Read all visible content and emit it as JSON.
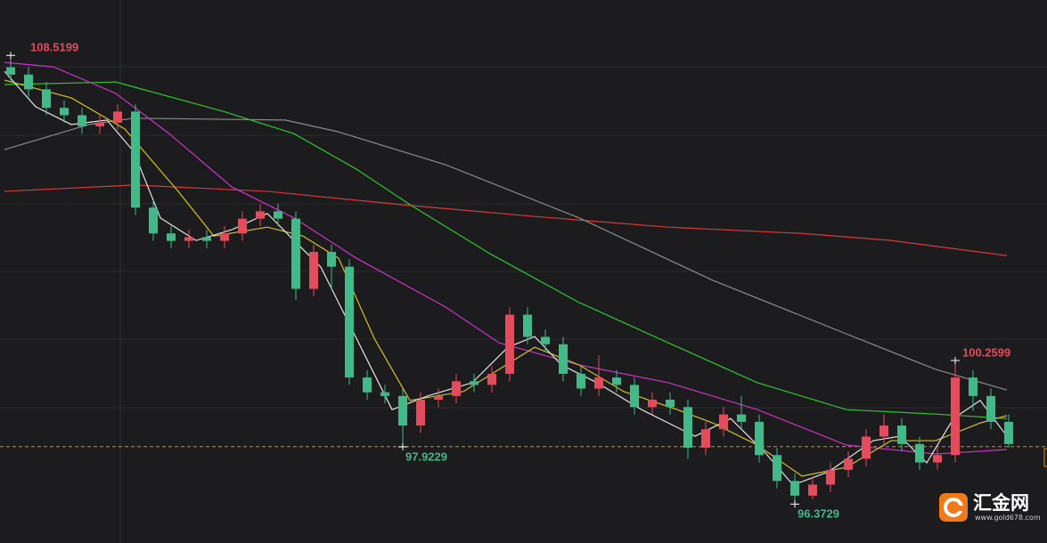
{
  "chart_data": {
    "type": "candlestick",
    "xlim": [
      -0.6,
      58.15
    ],
    "ylim": [
      95.32,
      110.02
    ],
    "grid_y": [
      108.21,
      106.36,
      104.5,
      102.67,
      100.84,
      98.98
    ],
    "grid_x": [
      6.15
    ],
    "up_color": "#e34c5c",
    "down_color": "#43b98a",
    "last_price": 97.93,
    "last_price_color": "#e08a1e",
    "candles": {
      "open": [
        108.2,
        108.0,
        107.6,
        107.1,
        106.9,
        106.6,
        106.7,
        107.0,
        104.4,
        103.7,
        103.5,
        103.6,
        103.5,
        103.7,
        104.1,
        104.3,
        104.1,
        102.2,
        103.2,
        102.8,
        99.8,
        99.4,
        99.3,
        98.5,
        99.2,
        99.3,
        99.7,
        99.6,
        99.9,
        101.5,
        100.9,
        100.7,
        99.9,
        99.5,
        99.8,
        99.6,
        99.0,
        99.2,
        99.0,
        97.9,
        98.4,
        98.8,
        98.6,
        97.7,
        97.0,
        96.6,
        96.9,
        97.3,
        97.6,
        98.2,
        98.5,
        98.0,
        97.5,
        97.7,
        99.8,
        99.3,
        98.6
      ],
      "high": [
        108.5199,
        108.2,
        107.8,
        107.3,
        107.1,
        106.9,
        107.2,
        107.2,
        104.6,
        103.9,
        103.8,
        103.8,
        103.9,
        104.3,
        104.5,
        104.5,
        104.3,
        103.4,
        103.4,
        103.0,
        100.0,
        99.6,
        99.5,
        99.4,
        99.5,
        99.9,
        99.9,
        100.1,
        101.7,
        101.7,
        101.1,
        100.9,
        100.1,
        100.4,
        100.0,
        99.8,
        99.4,
        99.4,
        99.2,
        98.6,
        99.0,
        99.3,
        98.8,
        97.9,
        97.2,
        97.1,
        97.5,
        97.8,
        98.4,
        98.8,
        98.7,
        98.2,
        97.9,
        100.2599,
        100.0,
        99.5,
        98.8
      ],
      "low": [
        107.8,
        107.4,
        106.9,
        106.7,
        106.4,
        106.4,
        106.5,
        104.2,
        103.5,
        103.3,
        103.3,
        103.3,
        103.3,
        103.5,
        103.9,
        103.9,
        101.9,
        102.0,
        102.2,
        99.6,
        99.2,
        99.1,
        97.9229,
        98.3,
        99.0,
        99.1,
        99.4,
        99.4,
        99.7,
        100.7,
        100.5,
        99.7,
        99.3,
        99.3,
        99.4,
        98.8,
        98.8,
        98.8,
        97.6,
        97.7,
        98.2,
        98.4,
        97.5,
        96.8,
        96.3729,
        96.5,
        96.7,
        97.1,
        97.4,
        98.0,
        97.8,
        97.3,
        97.3,
        97.5,
        98.9,
        98.4,
        97.9
      ],
      "close": [
        108.0,
        107.6,
        107.1,
        106.9,
        106.6,
        106.7,
        107.0,
        104.4,
        103.7,
        103.5,
        103.6,
        103.5,
        103.7,
        104.1,
        104.3,
        104.1,
        102.2,
        103.2,
        102.8,
        99.8,
        99.4,
        99.3,
        98.5,
        99.2,
        99.3,
        99.7,
        99.6,
        99.9,
        101.5,
        100.9,
        100.7,
        99.9,
        99.5,
        99.8,
        99.6,
        99.0,
        99.2,
        99.0,
        97.9,
        98.4,
        98.8,
        98.6,
        97.7,
        97.0,
        96.6,
        96.9,
        97.3,
        97.6,
        98.2,
        98.5,
        98.0,
        97.5,
        97.7,
        99.8,
        99.3,
        98.6,
        98.0
      ]
    },
    "lines": [
      {
        "color": "#d83a3a",
        "x": [
          -0.35,
          6.9,
          14.4,
          21.9,
          29.4,
          36.9,
          44.4,
          49.4,
          55.9
        ],
        "values": [
          104.84,
          105.01,
          104.84,
          104.48,
          104.16,
          103.87,
          103.7,
          103.51,
          103.1
        ]
      },
      {
        "color": "#8c8c8c",
        "x": [
          -0.35,
          4.4,
          6.9,
          15.4,
          18.4,
          24.4,
          31.9,
          39.4,
          46.9,
          51.9,
          55.9
        ],
        "values": [
          105.97,
          106.65,
          106.82,
          106.77,
          106.45,
          105.56,
          104.12,
          102.43,
          100.98,
          100.02,
          99.46
        ]
      },
      {
        "color": "#2fc62f",
        "x": [
          -0.35,
          5.9,
          11.9,
          15.9,
          19.4,
          22.4,
          26.9,
          31.9,
          36.9,
          41.9,
          46.9,
          51.9,
          55.9
        ],
        "values": [
          107.73,
          107.8,
          107.01,
          106.4,
          105.44,
          104.48,
          103.15,
          101.83,
          100.74,
          99.66,
          98.93,
          98.81,
          98.69
        ]
      },
      {
        "color": "#c935c9",
        "x": [
          -0.35,
          2.4,
          5.9,
          8.9,
          12.4,
          15.9,
          19.4,
          24.4,
          27.4,
          31.9,
          36.9,
          41.9,
          46.9,
          51.9,
          55.9
        ],
        "values": [
          108.33,
          108.21,
          107.49,
          106.4,
          104.96,
          104.12,
          103.03,
          101.71,
          100.74,
          100.14,
          99.66,
          98.93,
          97.97,
          97.73,
          97.85
        ]
      },
      {
        "color": "#d6c222",
        "x": [
          -0.35,
          3.4,
          6.4,
          9.4,
          11.4,
          14.4,
          16.4,
          18.4,
          20.4,
          22.4,
          25.4,
          27.4,
          29.4,
          31.9,
          34.4,
          37.4,
          39.4,
          41.9,
          44.4,
          46.9,
          49.4,
          51.9,
          54.4,
          55.9
        ],
        "values": [
          107.85,
          107.37,
          106.53,
          104.84,
          103.63,
          103.87,
          103.63,
          103.03,
          100.86,
          99.18,
          99.42,
          100.02,
          100.62,
          100.14,
          99.42,
          98.93,
          98.57,
          97.97,
          97.13,
          97.37,
          98.09,
          98.09,
          98.57,
          98.77
        ]
      },
      {
        "color": "#e4e4e4",
        "x": [
          -0.35,
          1.4,
          3.4,
          5.4,
          6.9,
          8.4,
          10.4,
          12.4,
          14.4,
          15.9,
          17.4,
          19.4,
          21.4,
          23.4,
          25.9,
          27.9,
          29.4,
          30.9,
          32.9,
          35.4,
          38.4,
          40.4,
          42.4,
          43.9,
          45.9,
          48.4,
          49.9,
          51.4,
          52.9,
          54.4,
          55.9
        ],
        "values": [
          108.09,
          107.13,
          106.65,
          106.77,
          105.92,
          104.12,
          103.51,
          103.8,
          104.24,
          103.51,
          102.79,
          100.86,
          98.93,
          99.3,
          99.66,
          100.62,
          100.91,
          100.14,
          99.66,
          98.93,
          98.21,
          98.69,
          97.73,
          96.89,
          97.25,
          98.09,
          98.21,
          97.49,
          98.69,
          99.18,
          98.21
        ]
      }
    ]
  },
  "watermark": {
    "name": "汇金网",
    "url": "www.gold678.com"
  }
}
